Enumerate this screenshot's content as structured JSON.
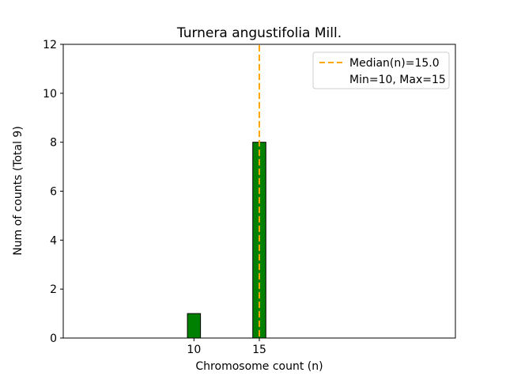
{
  "chart_data": {
    "type": "bar",
    "title": "Turnera angustifolia Mill.",
    "xlabel": "Chromosome count (n)",
    "ylabel": "Num of counts    (Total 9)",
    "total_counts": 9,
    "categories": [
      10,
      15
    ],
    "values": [
      1,
      8
    ],
    "bar": {
      "color": "#008000",
      "edge_color": "#000000",
      "width": 1
    },
    "xlim": [
      0,
      30
    ],
    "ylim": [
      0,
      12
    ],
    "xticks": [
      10,
      15
    ],
    "yticks": [
      0,
      2,
      4,
      6,
      8,
      10,
      12
    ],
    "grid": false,
    "median_line": {
      "x": 15.0,
      "color": "#FFA500",
      "style": "dashed",
      "width": 2
    },
    "legend": {
      "position": "upper right",
      "entries": [
        {
          "label": "Median(n)=15.0",
          "sample": "dashed-line",
          "color": "#FFA500"
        },
        {
          "label": "Min=10, Max=15",
          "sample": "none"
        }
      ]
    }
  }
}
